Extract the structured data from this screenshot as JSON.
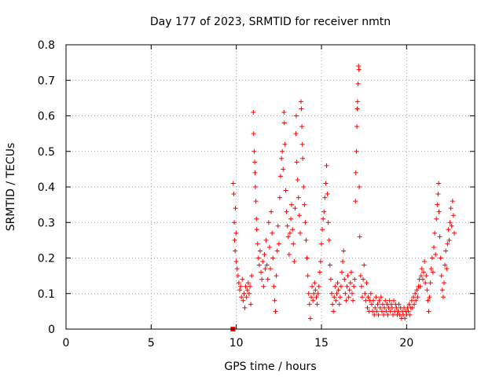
{
  "chart_data": {
    "type": "scatter",
    "title": "Day 177 of 2023, SRMTID for receiver nmtn",
    "xlabel": "GPS time / hours",
    "ylabel": "SRMTID / TECUs",
    "xlim": [
      0,
      24
    ],
    "ylim": [
      0,
      0.8
    ],
    "xticks": [
      "0",
      "5",
      "10",
      "15",
      "20"
    ],
    "xtick_values": [
      0,
      5,
      10,
      15,
      20
    ],
    "yticks": [
      "0",
      "0.1",
      "0.2",
      "0.3",
      "0.4",
      "0.5",
      "0.6",
      "0.7",
      "0.8"
    ],
    "ytick_values": [
      0,
      0.1,
      0.2,
      0.3,
      0.4,
      0.5,
      0.6,
      0.7,
      0.8
    ],
    "grid": true,
    "marker": "+",
    "series": [
      {
        "name": "SRMTID",
        "color": "#ff0000",
        "points": [
          [
            9.8,
            0.0
          ],
          [
            9.82,
            0.41
          ],
          [
            9.85,
            0.38
          ],
          [
            9.88,
            0.3
          ],
          [
            9.9,
            0.25
          ],
          [
            9.93,
            0.22
          ],
          [
            9.95,
            0.34
          ],
          [
            9.98,
            0.27
          ],
          [
            10.0,
            0.19
          ],
          [
            10.05,
            0.17
          ],
          [
            10.1,
            0.15
          ],
          [
            10.15,
            0.13
          ],
          [
            10.2,
            0.11
          ],
          [
            10.25,
            0.12
          ],
          [
            10.3,
            0.09
          ],
          [
            10.35,
            0.14
          ],
          [
            10.4,
            0.08
          ],
          [
            10.45,
            0.1
          ],
          [
            10.5,
            0.06
          ],
          [
            10.55,
            0.12
          ],
          [
            10.6,
            0.09
          ],
          [
            10.65,
            0.11
          ],
          [
            10.7,
            0.13
          ],
          [
            10.75,
            0.1
          ],
          [
            10.8,
            0.12
          ],
          [
            10.85,
            0.07
          ],
          [
            10.9,
            0.15
          ],
          [
            11.0,
            0.61
          ],
          [
            11.02,
            0.55
          ],
          [
            11.05,
            0.5
          ],
          [
            11.08,
            0.47
          ],
          [
            11.1,
            0.44
          ],
          [
            11.12,
            0.4
          ],
          [
            11.15,
            0.36
          ],
          [
            11.18,
            0.31
          ],
          [
            11.2,
            0.28
          ],
          [
            11.25,
            0.24
          ],
          [
            11.3,
            0.2
          ],
          [
            11.35,
            0.18
          ],
          [
            11.4,
            0.22
          ],
          [
            11.45,
            0.16
          ],
          [
            11.5,
            0.14
          ],
          [
            11.55,
            0.19
          ],
          [
            11.6,
            0.12
          ],
          [
            11.65,
            0.21
          ],
          [
            11.7,
            0.17
          ],
          [
            11.75,
            0.25
          ],
          [
            11.8,
            0.18
          ],
          [
            11.85,
            0.14
          ],
          [
            11.9,
            0.3
          ],
          [
            11.95,
            0.23
          ],
          [
            12.0,
            0.17
          ],
          [
            12.05,
            0.33
          ],
          [
            12.1,
            0.27
          ],
          [
            12.15,
            0.2
          ],
          [
            12.2,
            0.12
          ],
          [
            12.25,
            0.08
          ],
          [
            12.3,
            0.05
          ],
          [
            12.35,
            0.15
          ],
          [
            12.4,
            0.22
          ],
          [
            12.45,
            0.29
          ],
          [
            12.5,
            0.24
          ],
          [
            12.55,
            0.37
          ],
          [
            12.6,
            0.43
          ],
          [
            12.65,
            0.48
          ],
          [
            12.7,
            0.5
          ],
          [
            12.75,
            0.45
          ],
          [
            12.8,
            0.61
          ],
          [
            12.82,
            0.58
          ],
          [
            12.85,
            0.52
          ],
          [
            12.9,
            0.39
          ],
          [
            12.95,
            0.33
          ],
          [
            13.0,
            0.29
          ],
          [
            13.05,
            0.26
          ],
          [
            13.1,
            0.21
          ],
          [
            13.15,
            0.27
          ],
          [
            13.2,
            0.31
          ],
          [
            13.25,
            0.35
          ],
          [
            13.3,
            0.28
          ],
          [
            13.35,
            0.24
          ],
          [
            13.4,
            0.19
          ],
          [
            13.45,
            0.34
          ],
          [
            13.5,
            0.55
          ],
          [
            13.52,
            0.6
          ],
          [
            13.55,
            0.47
          ],
          [
            13.6,
            0.42
          ],
          [
            13.65,
            0.37
          ],
          [
            13.7,
            0.32
          ],
          [
            13.75,
            0.27
          ],
          [
            13.8,
            0.64
          ],
          [
            13.82,
            0.62
          ],
          [
            13.85,
            0.57
          ],
          [
            13.88,
            0.52
          ],
          [
            13.9,
            0.48
          ],
          [
            13.95,
            0.4
          ],
          [
            14.0,
            0.35
          ],
          [
            14.05,
            0.3
          ],
          [
            14.1,
            0.25
          ],
          [
            14.15,
            0.2
          ],
          [
            14.2,
            0.15
          ],
          [
            14.25,
            0.1
          ],
          [
            14.3,
            0.07
          ],
          [
            14.35,
            0.03
          ],
          [
            14.4,
            0.09
          ],
          [
            14.45,
            0.12
          ],
          [
            14.5,
            0.08
          ],
          [
            14.55,
            0.1
          ],
          [
            14.6,
            0.13
          ],
          [
            14.65,
            0.11
          ],
          [
            14.7,
            0.09
          ],
          [
            14.75,
            0.07
          ],
          [
            14.8,
            0.1
          ],
          [
            14.85,
            0.12
          ],
          [
            14.9,
            0.16
          ],
          [
            14.95,
            0.19
          ],
          [
            15.0,
            0.24
          ],
          [
            15.05,
            0.28
          ],
          [
            15.1,
            0.31
          ],
          [
            15.15,
            0.33
          ],
          [
            15.2,
            0.37
          ],
          [
            15.25,
            0.41
          ],
          [
            15.3,
            0.46
          ],
          [
            15.35,
            0.38
          ],
          [
            15.4,
            0.3
          ],
          [
            15.45,
            0.25
          ],
          [
            15.5,
            0.18
          ],
          [
            15.55,
            0.14
          ],
          [
            15.6,
            0.1
          ],
          [
            15.65,
            0.07
          ],
          [
            15.7,
            0.05
          ],
          [
            15.75,
            0.09
          ],
          [
            15.8,
            0.12
          ],
          [
            15.85,
            0.08
          ],
          [
            15.9,
            0.1
          ],
          [
            15.95,
            0.13
          ],
          [
            16.0,
            0.11
          ],
          [
            16.05,
            0.07
          ],
          [
            16.1,
            0.09
          ],
          [
            16.15,
            0.12
          ],
          [
            16.2,
            0.16
          ],
          [
            16.25,
            0.19
          ],
          [
            16.3,
            0.22
          ],
          [
            16.35,
            0.14
          ],
          [
            16.4,
            0.1
          ],
          [
            16.45,
            0.08
          ],
          [
            16.5,
            0.12
          ],
          [
            16.55,
            0.15
          ],
          [
            16.6,
            0.09
          ],
          [
            16.65,
            0.11
          ],
          [
            16.7,
            0.13
          ],
          [
            16.75,
            0.16
          ],
          [
            16.8,
            0.1
          ],
          [
            16.85,
            0.08
          ],
          [
            16.9,
            0.12
          ],
          [
            16.95,
            0.14
          ],
          [
            17.0,
            0.36
          ],
          [
            17.02,
            0.44
          ],
          [
            17.05,
            0.5
          ],
          [
            17.08,
            0.57
          ],
          [
            17.1,
            0.62
          ],
          [
            17.12,
            0.64
          ],
          [
            17.15,
            0.69
          ],
          [
            17.18,
            0.74
          ],
          [
            17.2,
            0.73
          ],
          [
            17.22,
            0.4
          ],
          [
            17.25,
            0.26
          ],
          [
            17.3,
            0.15
          ],
          [
            17.35,
            0.12
          ],
          [
            17.4,
            0.09
          ],
          [
            17.45,
            0.14
          ],
          [
            17.5,
            0.18
          ],
          [
            17.55,
            0.1
          ],
          [
            17.6,
            0.08
          ],
          [
            17.65,
            0.13
          ],
          [
            17.7,
            0.06
          ],
          [
            17.75,
            0.09
          ],
          [
            17.8,
            0.05
          ],
          [
            17.85,
            0.08
          ],
          [
            17.9,
            0.1
          ],
          [
            17.95,
            0.07
          ],
          [
            18.0,
            0.05
          ],
          [
            18.05,
            0.08
          ],
          [
            18.1,
            0.04
          ],
          [
            18.15,
            0.06
          ],
          [
            18.2,
            0.09
          ],
          [
            18.25,
            0.05
          ],
          [
            18.3,
            0.07
          ],
          [
            18.35,
            0.04
          ],
          [
            18.4,
            0.08
          ],
          [
            18.45,
            0.06
          ],
          [
            18.5,
            0.09
          ],
          [
            18.55,
            0.05
          ],
          [
            18.6,
            0.07
          ],
          [
            18.65,
            0.04
          ],
          [
            18.7,
            0.06
          ],
          [
            18.75,
            0.08
          ],
          [
            18.8,
            0.05
          ],
          [
            18.85,
            0.07
          ],
          [
            18.9,
            0.04
          ],
          [
            18.95,
            0.06
          ],
          [
            19.0,
            0.08
          ],
          [
            19.05,
            0.05
          ],
          [
            19.1,
            0.07
          ],
          [
            19.15,
            0.06
          ],
          [
            19.2,
            0.04
          ],
          [
            19.25,
            0.08
          ],
          [
            19.3,
            0.05
          ],
          [
            19.35,
            0.07
          ],
          [
            19.4,
            0.06
          ],
          [
            19.45,
            0.04
          ],
          [
            19.5,
            0.05
          ],
          [
            19.55,
            0.07
          ],
          [
            19.6,
            0.04
          ],
          [
            19.65,
            0.06
          ],
          [
            19.7,
            0.03
          ],
          [
            19.75,
            0.05
          ],
          [
            19.8,
            0.04
          ],
          [
            19.85,
            0.06
          ],
          [
            19.9,
            0.03
          ],
          [
            19.95,
            0.05
          ],
          [
            20.0,
            0.04
          ],
          [
            20.05,
            0.06
          ],
          [
            20.1,
            0.05
          ],
          [
            20.15,
            0.07
          ],
          [
            20.2,
            0.04
          ],
          [
            20.25,
            0.06
          ],
          [
            20.3,
            0.08
          ],
          [
            20.35,
            0.06
          ],
          [
            20.4,
            0.09
          ],
          [
            20.45,
            0.07
          ],
          [
            20.5,
            0.1
          ],
          [
            20.55,
            0.08
          ],
          [
            20.6,
            0.11
          ],
          [
            20.65,
            0.09
          ],
          [
            20.7,
            0.12
          ],
          [
            20.75,
            0.14
          ],
          [
            20.8,
            0.12
          ],
          [
            20.85,
            0.15
          ],
          [
            20.9,
            0.17
          ],
          [
            20.95,
            0.14
          ],
          [
            21.0,
            0.16
          ],
          [
            21.05,
            0.19
          ],
          [
            21.1,
            0.13
          ],
          [
            21.15,
            0.15
          ],
          [
            21.2,
            0.11
          ],
          [
            21.25,
            0.08
          ],
          [
            21.3,
            0.05
          ],
          [
            21.35,
            0.09
          ],
          [
            21.4,
            0.13
          ],
          [
            21.45,
            0.17
          ],
          [
            21.5,
            0.2
          ],
          [
            21.55,
            0.16
          ],
          [
            21.6,
            0.23
          ],
          [
            21.65,
            0.27
          ],
          [
            21.7,
            0.21
          ],
          [
            21.75,
            0.31
          ],
          [
            21.8,
            0.35
          ],
          [
            21.85,
            0.38
          ],
          [
            21.88,
            0.41
          ],
          [
            21.9,
            0.33
          ],
          [
            21.95,
            0.26
          ],
          [
            22.0,
            0.2
          ],
          [
            22.05,
            0.15
          ],
          [
            22.1,
            0.11
          ],
          [
            22.15,
            0.09
          ],
          [
            22.2,
            0.13
          ],
          [
            22.25,
            0.18
          ],
          [
            22.3,
            0.22
          ],
          [
            22.35,
            0.17
          ],
          [
            22.4,
            0.24
          ],
          [
            22.45,
            0.28
          ],
          [
            22.5,
            0.25
          ],
          [
            22.55,
            0.3
          ],
          [
            22.6,
            0.34
          ],
          [
            22.65,
            0.29
          ],
          [
            22.7,
            0.36
          ],
          [
            22.75,
            0.32
          ],
          [
            22.8,
            0.27
          ]
        ]
      }
    ]
  }
}
